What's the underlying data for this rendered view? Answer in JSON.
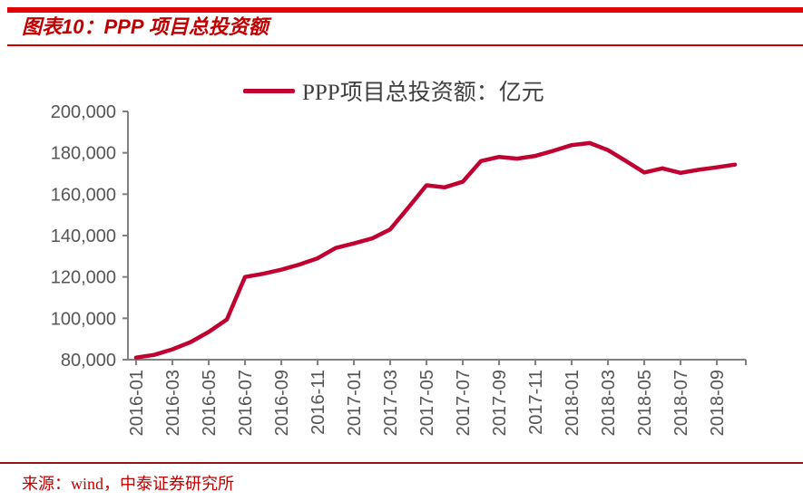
{
  "header": {
    "title": "图表10：PPP 项目总投资额"
  },
  "footer": {
    "source": "来源：wind，中泰证券研究所"
  },
  "theme": {
    "accent_red": "#E00000",
    "title_red": "#C00000",
    "rule_red": "#CC0000",
    "line_crimson": "#C00030",
    "legend_text": "#3F3F3F",
    "axis_gray": "#808080",
    "label_gray": "#555555",
    "footer_rule_maroon": "#941414",
    "source_red": "#C00000"
  },
  "chart_data": {
    "type": "line",
    "title": "图表10：PPP 项目总投资额",
    "legend": "PPP项目总投资额：亿元",
    "xlabel": "",
    "ylabel": "",
    "unit": "亿元",
    "grid": false,
    "legend_position": "top-center",
    "ylim": [
      80000,
      200000
    ],
    "ytick_values": [
      80000,
      100000,
      120000,
      140000,
      160000,
      180000,
      200000
    ],
    "ytick_labels": [
      "80,000",
      "100,000",
      "120,000",
      "140,000",
      "160,000",
      "180,000",
      "200,000"
    ],
    "xtick_every": 2,
    "x": [
      "2016-01",
      "2016-02",
      "2016-03",
      "2016-04",
      "2016-05",
      "2016-06",
      "2016-07",
      "2016-08",
      "2016-09",
      "2016-10",
      "2016-11",
      "2016-12",
      "2017-01",
      "2017-02",
      "2017-03",
      "2017-04",
      "2017-05",
      "2017-06",
      "2017-07",
      "2017-08",
      "2017-09",
      "2017-10",
      "2017-11",
      "2017-12",
      "2018-01",
      "2018-02",
      "2018-03",
      "2018-04",
      "2018-05",
      "2018-06",
      "2018-07",
      "2018-08",
      "2018-09",
      "2018-10"
    ],
    "values": [
      81000,
      82300,
      85000,
      88500,
      93400,
      99400,
      120000,
      121500,
      123500,
      126000,
      129000,
      134000,
      136200,
      138600,
      143000,
      153500,
      164300,
      163300,
      166000,
      176000,
      178000,
      177200,
      178500,
      181000,
      183700,
      184700,
      181300,
      176000,
      170500,
      172500,
      170300,
      171800,
      173000,
      174300
    ]
  }
}
